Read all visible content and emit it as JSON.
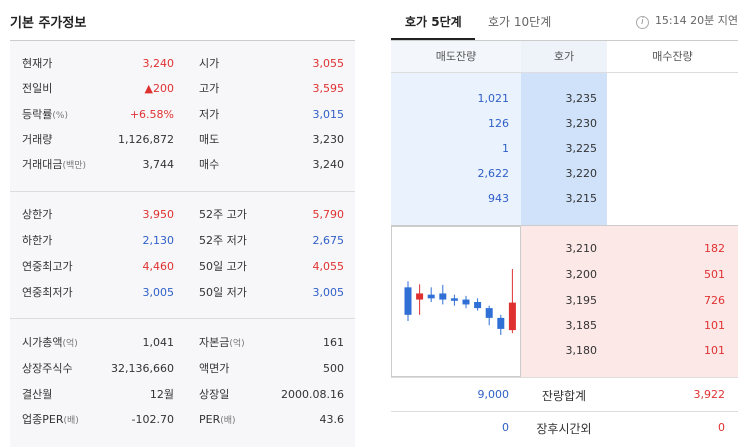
{
  "left": {
    "title": "기본 주가정보",
    "section1": [
      {
        "label": "현재가",
        "value": "3,240",
        "label2": "시가",
        "value2": "3,055",
        "c1": "red",
        "c2": "red"
      },
      {
        "label": "전일비",
        "value": "▲200",
        "label2": "고가",
        "value2": "3,595",
        "c1": "red",
        "c2": "red"
      },
      {
        "label": "등락률",
        "sub": "(%)",
        "value": "+6.58%",
        "label2": "저가",
        "value2": "3,015",
        "c1": "red",
        "c2": "blue"
      },
      {
        "label": "거래량",
        "value": "1,126,872",
        "label2": "매도",
        "value2": "3,230",
        "c1": "dark",
        "c2": "dark"
      },
      {
        "label": "거래대금",
        "sub": "(백만)",
        "value": "3,744",
        "label2": "매수",
        "value2": "3,240",
        "c1": "dark",
        "c2": "dark"
      }
    ],
    "section2": [
      {
        "label": "상한가",
        "value": "3,950",
        "label2": "52주 고가",
        "value2": "5,790",
        "c1": "red",
        "c2": "red"
      },
      {
        "label": "하한가",
        "value": "2,130",
        "label2": "52주 저가",
        "value2": "2,675",
        "c1": "blue",
        "c2": "blue"
      },
      {
        "label": "연중최고가",
        "value": "4,460",
        "label2": "50일 고가",
        "value2": "4,055",
        "c1": "red",
        "c2": "red"
      },
      {
        "label": "연중최저가",
        "value": "3,005",
        "label2": "50일 저가",
        "value2": "3,005",
        "c1": "blue",
        "c2": "blue"
      }
    ],
    "section3": [
      {
        "label": "시가총액",
        "sub": "(억)",
        "value": "1,041",
        "label2": "자본금",
        "sub2": "(억)",
        "value2": "161",
        "c1": "dark",
        "c2": "dark"
      },
      {
        "label": "상장주식수",
        "value": "32,136,660",
        "label2": "액면가",
        "value2": "500",
        "c1": "dark",
        "c2": "dark"
      },
      {
        "label": "결산월",
        "value": "12월",
        "label2": "상장일",
        "value2": "2000.08.16",
        "c1": "dark",
        "c2": "dark"
      },
      {
        "label": "업종PER",
        "sub": "(배)",
        "value": "-102.70",
        "label2": "PER",
        "sub2": "(배)",
        "value2": "43.6",
        "c1": "dark",
        "c2": "dark"
      }
    ]
  },
  "right": {
    "tabs": [
      "호가 5단계",
      "호가 10단계"
    ],
    "info_text": "15:14 20분 지연",
    "info_icon": "info-icon",
    "headers": [
      "매도잔량",
      "호가",
      "매수잔량"
    ],
    "asks": [
      {
        "volume": "1,021",
        "price": "3,235"
      },
      {
        "volume": "126",
        "price": "3,230"
      },
      {
        "volume": "1",
        "price": "3,225"
      },
      {
        "volume": "2,622",
        "price": "3,220"
      },
      {
        "volume": "943",
        "price": "3,215"
      }
    ],
    "bids": [
      {
        "price": "3,210",
        "volume": "182"
      },
      {
        "price": "3,200",
        "volume": "501"
      },
      {
        "price": "3,195",
        "volume": "726"
      },
      {
        "price": "3,185",
        "volume": "101"
      },
      {
        "price": "3,180",
        "volume": "101"
      }
    ],
    "total": {
      "ask": "9,000",
      "label": "잔량합계",
      "bid": "3,922"
    },
    "after": {
      "ask": "0",
      "label": "장후시간외",
      "bid": "0"
    },
    "mini_chart": {
      "type": "candlestick",
      "colors": {
        "up": "#e03131",
        "down": "#2f6fd6"
      },
      "candles": [
        {
          "open": 3210,
          "close": 3165,
          "high": 3220,
          "low": 3155
        },
        {
          "open": 3190,
          "close": 3200,
          "high": 3215,
          "low": 3165
        },
        {
          "open": 3198,
          "close": 3192,
          "high": 3210,
          "low": 3186
        },
        {
          "open": 3200,
          "close": 3190,
          "high": 3214,
          "low": 3182
        },
        {
          "open": 3192,
          "close": 3188,
          "high": 3198,
          "low": 3180
        },
        {
          "open": 3190,
          "close": 3182,
          "high": 3196,
          "low": 3176
        },
        {
          "open": 3186,
          "close": 3176,
          "high": 3192,
          "low": 3172
        },
        {
          "open": 3176,
          "close": 3160,
          "high": 3180,
          "low": 3148
        },
        {
          "open": 3160,
          "close": 3142,
          "high": 3165,
          "low": 3132
        },
        {
          "open": 3140,
          "close": 3185,
          "high": 3240,
          "low": 3135
        }
      ]
    }
  }
}
